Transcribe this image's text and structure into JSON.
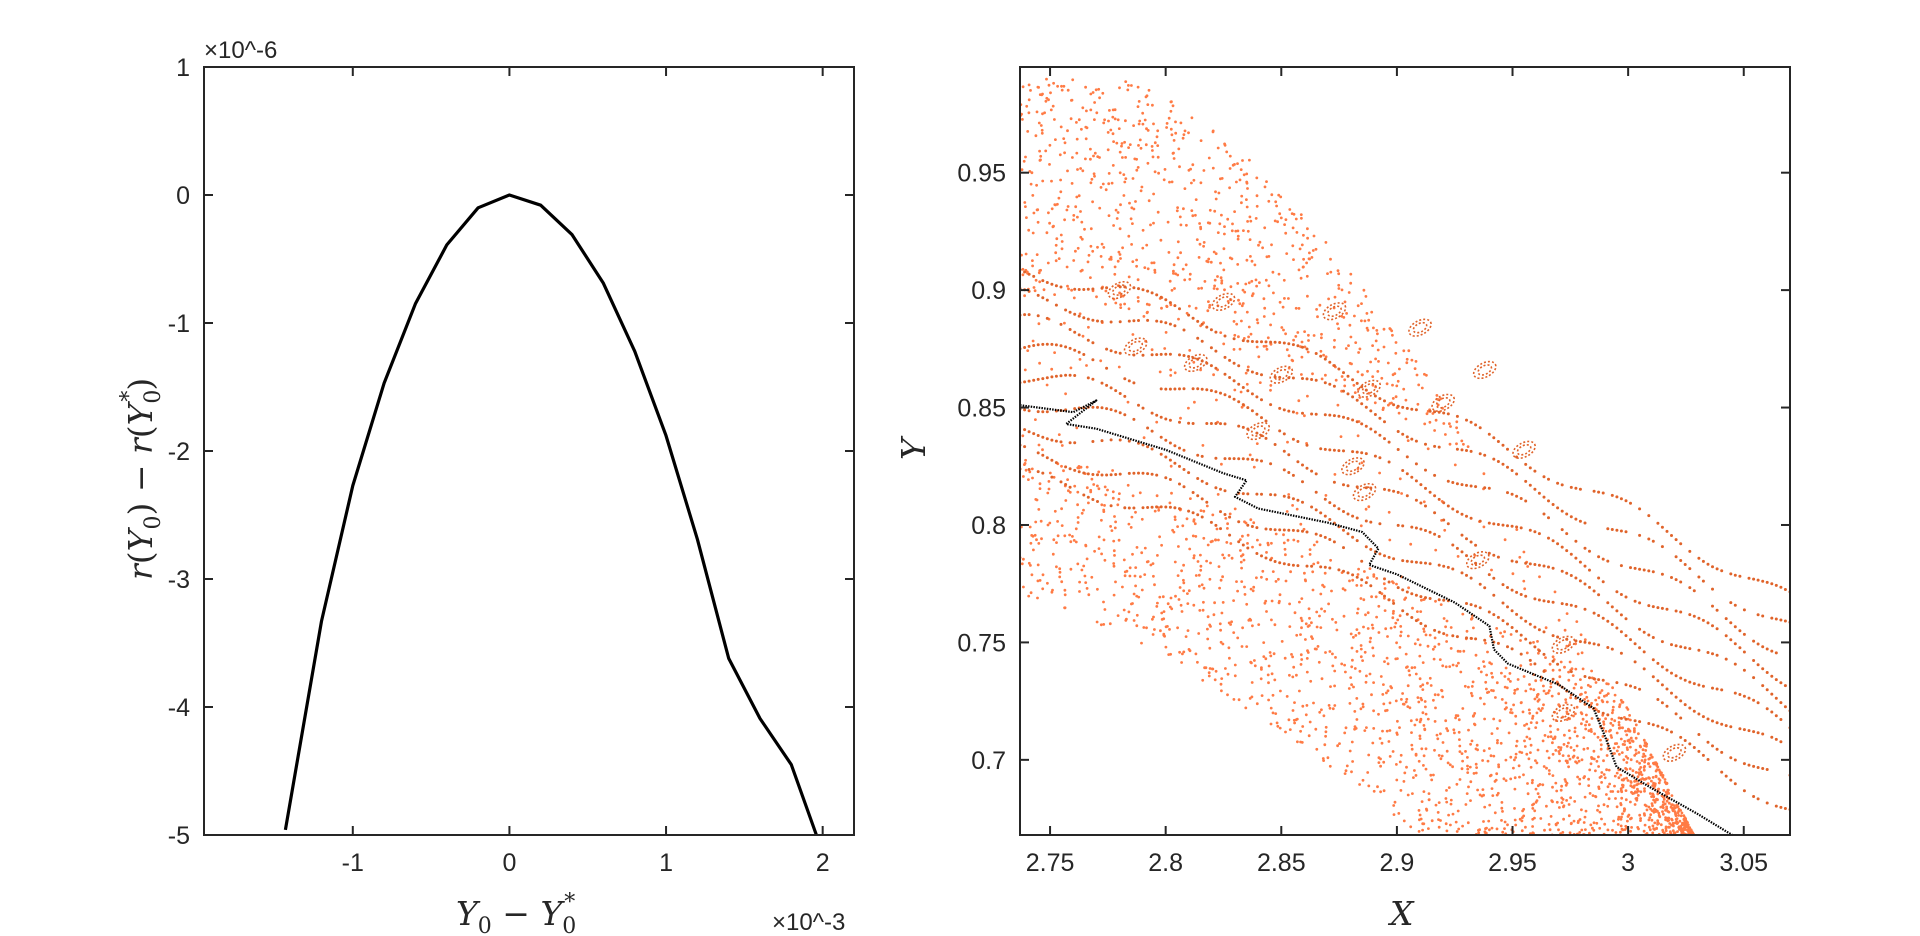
{
  "chart_data": [
    {
      "type": "line",
      "xlabel": "Y_0 − Y_0^*",
      "ylabel": "r(Y_0) − r(Y_0^*)",
      "x_exponent_label": "×10^-3",
      "y_exponent_label": "×10^-6",
      "xlim": [
        -1.95,
        2.2
      ],
      "ylim": [
        -5,
        1
      ],
      "xtick_labels": [
        "-1",
        "0",
        "1",
        "2"
      ],
      "xticks": [
        -1,
        0,
        1,
        2
      ],
      "ytick_labels": [
        "1",
        "0",
        "-1",
        "-2",
        "-3",
        "-4",
        "-5"
      ],
      "yticks": [
        1,
        0,
        -1,
        -2,
        -3,
        -4,
        -5
      ],
      "grid": false,
      "series": [
        {
          "color": "#000000",
          "x": [
            -1.43,
            -1.2,
            -1.0,
            -0.8,
            -0.6,
            -0.4,
            -0.2,
            0.0,
            0.2,
            0.4,
            0.6,
            0.8,
            1.0,
            1.2,
            1.4,
            1.6,
            1.8,
            1.96
          ],
          "values": [
            -4.96,
            -3.33,
            -2.27,
            -1.47,
            -0.85,
            -0.39,
            -0.1,
            0.0,
            -0.08,
            -0.31,
            -0.69,
            -1.22,
            -1.88,
            -2.69,
            -3.62,
            -4.09,
            -4.45,
            -5.0
          ]
        }
      ]
    },
    {
      "type": "scatter",
      "xlabel": "X",
      "ylabel": "Y",
      "xlim": [
        2.737,
        3.07
      ],
      "ylim": [
        0.668,
        0.995
      ],
      "xtick_labels": [
        "2.75",
        "2.8",
        "2.85",
        "2.9",
        "2.95",
        "3",
        "3.05"
      ],
      "xticks": [
        2.75,
        2.8,
        2.85,
        2.9,
        2.95,
        3.0,
        3.05
      ],
      "ytick_labels": [
        "0.7",
        "0.75",
        "0.8",
        "0.85",
        "0.9",
        "0.95"
      ],
      "yticks": [
        0.7,
        0.75,
        0.8,
        0.85,
        0.9,
        0.95
      ],
      "grid": false,
      "colors": {
        "chaotic": "#ff7b45",
        "regular": "#e0632a",
        "manifold": "#000000"
      },
      "orbit_centers": [
        {
          "x": 2.78,
          "y": 0.9
        },
        {
          "x": 2.825,
          "y": 0.895
        },
        {
          "x": 2.873,
          "y": 0.891
        },
        {
          "x": 2.91,
          "y": 0.884
        },
        {
          "x": 2.938,
          "y": 0.866
        },
        {
          "x": 2.787,
          "y": 0.876
        },
        {
          "x": 2.813,
          "y": 0.869
        },
        {
          "x": 2.85,
          "y": 0.864
        },
        {
          "x": 2.888,
          "y": 0.858
        },
        {
          "x": 2.92,
          "y": 0.852
        },
        {
          "x": 2.955,
          "y": 0.832
        },
        {
          "x": 2.84,
          "y": 0.84
        },
        {
          "x": 2.881,
          "y": 0.825
        },
        {
          "x": 2.886,
          "y": 0.814
        },
        {
          "x": 2.935,
          "y": 0.785
        },
        {
          "x": 2.972,
          "y": 0.749
        },
        {
          "x": 3.02,
          "y": 0.703
        },
        {
          "x": 2.972,
          "y": 0.72
        }
      ],
      "manifold": {
        "x": [
          2.737,
          2.76,
          2.77,
          2.757,
          2.77,
          2.8,
          2.825,
          2.835,
          2.83,
          2.84,
          2.87,
          2.885,
          2.892,
          2.888,
          2.9,
          2.925,
          2.94,
          2.942,
          2.948,
          2.97,
          2.985,
          2.99,
          2.995,
          3.01,
          3.03,
          3.045
        ],
        "values": [
          0.851,
          0.848,
          0.853,
          0.843,
          0.841,
          0.832,
          0.822,
          0.819,
          0.812,
          0.807,
          0.801,
          0.797,
          0.79,
          0.783,
          0.779,
          0.767,
          0.757,
          0.747,
          0.741,
          0.732,
          0.722,
          0.71,
          0.697,
          0.688,
          0.677,
          0.668
        ]
      }
    }
  ]
}
